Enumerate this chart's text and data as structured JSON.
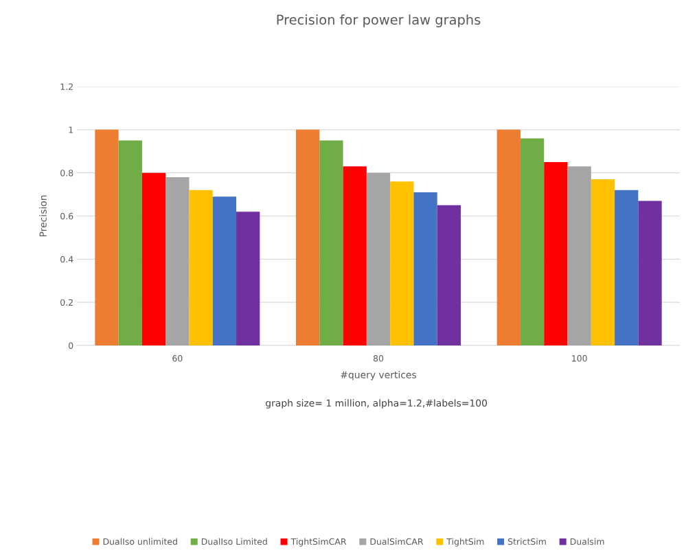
{
  "chart_data": {
    "type": "bar",
    "title": "Precision for power law graphs",
    "xlabel": "#query vertices",
    "ylabel": "Precision",
    "categories": [
      "60",
      "80",
      "100"
    ],
    "series": [
      {
        "name": "DualIso unlimited",
        "color": "#ed7d31",
        "values": [
          1,
          1,
          1
        ]
      },
      {
        "name": "DualIso Limited",
        "color": "#70ad47",
        "values": [
          0.95,
          0.95,
          0.96
        ]
      },
      {
        "name": "TightSimCAR",
        "color": "#ff0000",
        "values": [
          0.8,
          0.83,
          0.85
        ]
      },
      {
        "name": "DualSimCAR",
        "color": "#a5a5a5",
        "values": [
          0.78,
          0.8,
          0.83
        ]
      },
      {
        "name": "TightSim",
        "color": "#ffc000",
        "values": [
          0.72,
          0.76,
          0.77
        ]
      },
      {
        "name": "StrictSim",
        "color": "#4472c4",
        "values": [
          0.69,
          0.71,
          0.72
        ]
      },
      {
        "name": "Dualsim",
        "color": "#7030a0",
        "values": [
          0.62,
          0.65,
          0.67
        ]
      }
    ],
    "ylim": [
      0,
      1.2
    ],
    "yticks": [
      0,
      0.2,
      0.4,
      0.6,
      0.8,
      1,
      1.2
    ],
    "grid": "y",
    "legend": "bottom",
    "annotations": [
      "graph size= 1 million, alpha=1.2,#labels=100"
    ]
  }
}
